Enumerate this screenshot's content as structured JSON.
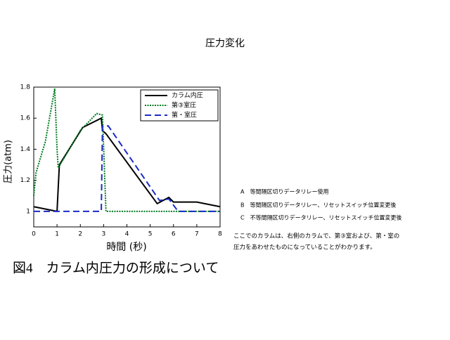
{
  "chart_data": {
    "type": "line",
    "title": "圧力変化",
    "x_label": "時間 (秒)",
    "y_label": "圧力(atm)",
    "xlim": [
      0,
      8
    ],
    "xticks": [
      0,
      1,
      2,
      3,
      4,
      5,
      6,
      7,
      8
    ],
    "ylim": [
      0.9,
      1.8
    ],
    "yticks": [
      1,
      1.2,
      1.4,
      1.6,
      1.8
    ],
    "series": [
      {
        "name": "カラム内圧",
        "color": "#000000",
        "dash": "solid",
        "x": [
          0,
          1,
          1.1,
          2.1,
          2.9,
          2.95,
          3.1,
          5.3,
          5.8,
          6,
          7,
          8
        ],
        "values": [
          1.03,
          1.0,
          1.3,
          1.54,
          1.6,
          1.52,
          1.5,
          1.05,
          1.09,
          1.06,
          1.06,
          1.03
        ]
      },
      {
        "name": "第③室圧",
        "color": "#007a20",
        "dash": "dotted",
        "x": [
          0,
          0.1,
          0.5,
          0.9,
          1.0,
          1.05,
          2,
          2.7,
          2.95,
          3.1,
          8
        ],
        "values": [
          1.1,
          1.25,
          1.45,
          1.79,
          1.4,
          1.28,
          1.52,
          1.63,
          1.62,
          1.0,
          1.0
        ]
      },
      {
        "name": "第・室圧",
        "color": "#1a2ac8",
        "dash": "dashed",
        "x": [
          0,
          2.9,
          2.95,
          3.2,
          5.4,
          5.8,
          6.2,
          8
        ],
        "values": [
          1.0,
          1.0,
          1.55,
          1.55,
          1.07,
          1.08,
          1.0,
          1.0
        ]
      }
    ],
    "legend": "top-right"
  },
  "notes": [
    "A　等間隔区切りデータリレー使用",
    "B　等間隔区切りデータリレー、リセットスイッチ位置変更後",
    "C　不等間隔区切りデータリレー、リセットスイッチ位置変更後"
  ],
  "description": [
    "ここでのカラムは、右側のカラムで、第③室および、第・室の",
    "圧力をあわせたものになっていることがわかります。"
  ],
  "caption": "図4　カラム内圧力の形成について"
}
